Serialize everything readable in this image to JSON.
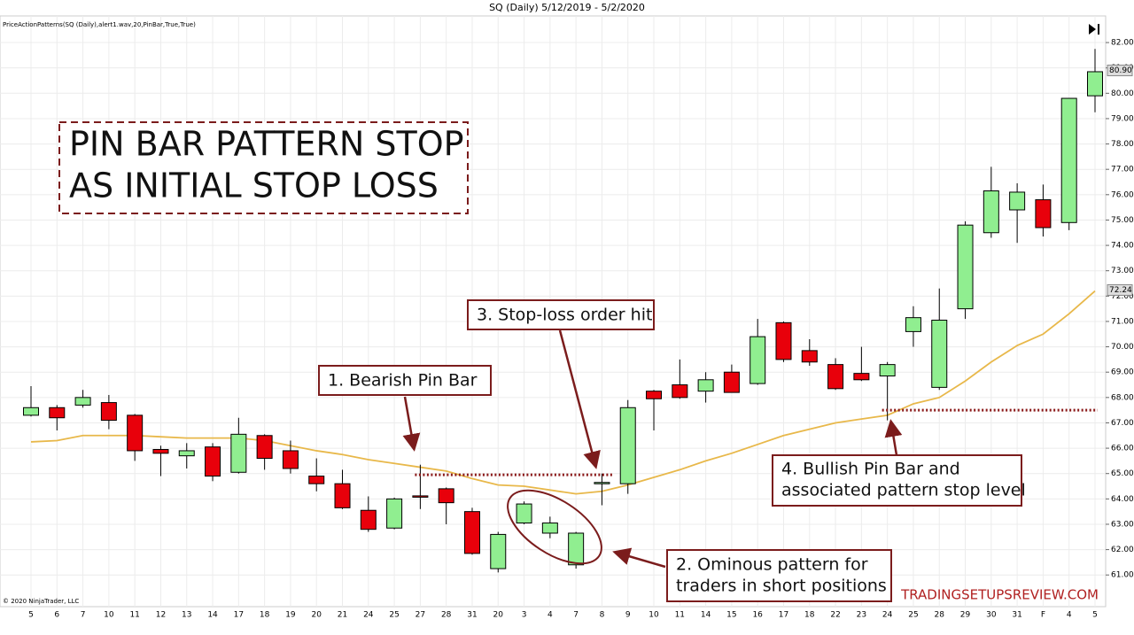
{
  "chart_data": {
    "type": "candlestick",
    "title": "SQ (Daily)  5/12/2019 - 5/2/2020",
    "indicator_label": "PriceActionPatterns(SQ (Daily),alert1.wav,20,PinBar,True,True)",
    "copyright": "© 2020 NinjaTrader, LLC",
    "headline": [
      "PIN BAR PATTERN STOP",
      "AS INITIAL STOP LOSS"
    ],
    "annotations": [
      [
        "1. Bearish Pin Bar"
      ],
      [
        "2. Ominous pattern for",
        "traders in short positions"
      ],
      [
        "3. Stop-loss order hit"
      ],
      [
        "4. Bullish Pin Bar and",
        "associated pattern stop level"
      ]
    ],
    "watermark": "TRADINGSETUPSREVIEW.COM",
    "categories": [
      "5",
      "6",
      "7",
      "10",
      "11",
      "12",
      "13",
      "14",
      "17",
      "18",
      "19",
      "20",
      "21",
      "24",
      "25",
      "27",
      "28",
      "31",
      "20",
      "3",
      "4",
      "7",
      "8",
      "9",
      "10",
      "11",
      "14",
      "15",
      "16",
      "17",
      "18",
      "22",
      "23",
      "24",
      "25",
      "28",
      "29",
      "30",
      "31",
      "F",
      "4",
      "5"
    ],
    "open": [
      67.3,
      67.6,
      67.7,
      67.8,
      67.3,
      65.95,
      65.7,
      66.05,
      65.05,
      66.5,
      65.9,
      64.9,
      64.6,
      63.55,
      62.85,
      64.12,
      64.4,
      63.5,
      61.25,
      63.05,
      62.65,
      61.4,
      64.6,
      64.6,
      68.25,
      68.5,
      68.25,
      69.0,
      68.55,
      70.95,
      69.85,
      69.3,
      68.95,
      68.85,
      70.6,
      68.4,
      71.5,
      74.5,
      75.4,
      75.8,
      74.9,
      79.9
    ],
    "high": [
      68.45,
      67.7,
      68.3,
      68.1,
      67.35,
      66.1,
      66.2,
      66.2,
      67.2,
      66.55,
      66.3,
      65.6,
      65.15,
      64.1,
      64.05,
      65.35,
      64.45,
      63.65,
      62.7,
      63.9,
      63.3,
      62.7,
      65.0,
      67.9,
      68.3,
      69.5,
      69.0,
      69.3,
      71.1,
      71.0,
      70.3,
      69.55,
      70.0,
      69.4,
      71.6,
      72.3,
      74.95,
      77.1,
      76.45,
      76.4,
      79.8,
      81.75
    ],
    "low": [
      67.25,
      66.7,
      67.6,
      66.75,
      65.5,
      64.9,
      65.2,
      64.7,
      65.0,
      65.15,
      65.0,
      64.3,
      63.6,
      62.7,
      62.8,
      63.6,
      63.0,
      61.8,
      61.1,
      63.0,
      62.45,
      61.25,
      63.75,
      64.2,
      66.7,
      67.95,
      67.8,
      68.2,
      68.5,
      69.4,
      69.25,
      68.3,
      68.65,
      67.1,
      70.0,
      68.3,
      71.1,
      74.3,
      74.1,
      74.35,
      74.6,
      79.25
    ],
    "close": [
      67.6,
      67.2,
      68.0,
      67.1,
      65.9,
      65.8,
      65.9,
      64.9,
      66.55,
      65.6,
      65.2,
      64.6,
      63.65,
      62.8,
      64.0,
      64.08,
      63.85,
      61.85,
      62.6,
      63.8,
      63.05,
      62.65,
      64.65,
      67.6,
      67.95,
      68.0,
      68.7,
      68.2,
      70.4,
      69.5,
      69.4,
      68.35,
      68.7,
      69.3,
      71.15,
      71.05,
      74.8,
      76.15,
      76.1,
      74.7,
      79.8,
      80.85
    ],
    "up_color": "#90ee90",
    "down_color": "#e8000b",
    "sma": {
      "color": "#e8b84a",
      "values": [
        66.25,
        66.3,
        66.5,
        66.5,
        66.5,
        66.45,
        66.4,
        66.4,
        66.4,
        66.3,
        66.1,
        65.9,
        65.75,
        65.55,
        65.4,
        65.25,
        65.1,
        64.8,
        64.55,
        64.5,
        64.35,
        64.2,
        64.3,
        64.55,
        64.85,
        65.15,
        65.5,
        65.8,
        66.15,
        66.5,
        66.75,
        67.0,
        67.15,
        67.3,
        67.75,
        68.0,
        68.65,
        69.4,
        70.05,
        70.5,
        71.3,
        72.2
      ]
    },
    "stop_levels": [
      64.95,
      67.5
    ],
    "stop_color": "#8b1a1a",
    "price_markers": [
      {
        "value": 80.9,
        "label": "80.90"
      },
      {
        "value": 72.24,
        "label": "72.24"
      }
    ],
    "ylim": [
      59.75,
      83.05
    ],
    "yticks": [
      {
        "value": 61,
        "label": "61.00"
      },
      {
        "value": 62,
        "label": "62.00"
      },
      {
        "value": 63,
        "label": "63.00"
      },
      {
        "value": 64,
        "label": "64.00"
      },
      {
        "value": 65,
        "label": "65.00"
      },
      {
        "value": 66,
        "label": "66.00"
      },
      {
        "value": 67,
        "label": "67.00"
      },
      {
        "value": 68,
        "label": "68.00"
      },
      {
        "value": 69,
        "label": "69.00"
      },
      {
        "value": 70,
        "label": "70.00"
      },
      {
        "value": 71,
        "label": "71.00"
      },
      {
        "value": 72,
        "label": "72.00"
      },
      {
        "value": 73,
        "label": "73.00"
      },
      {
        "value": 74,
        "label": "74.00"
      },
      {
        "value": 75,
        "label": "75.00"
      },
      {
        "value": 76,
        "label": "76.00"
      },
      {
        "value": 77,
        "label": "77.00"
      },
      {
        "value": 78,
        "label": "78.00"
      },
      {
        "value": 79,
        "label": "79.00"
      },
      {
        "value": 80,
        "label": "80.00"
      },
      {
        "value": 81,
        "label": "81.00"
      },
      {
        "value": 82,
        "label": "82.00"
      }
    ],
    "grid": true
  }
}
